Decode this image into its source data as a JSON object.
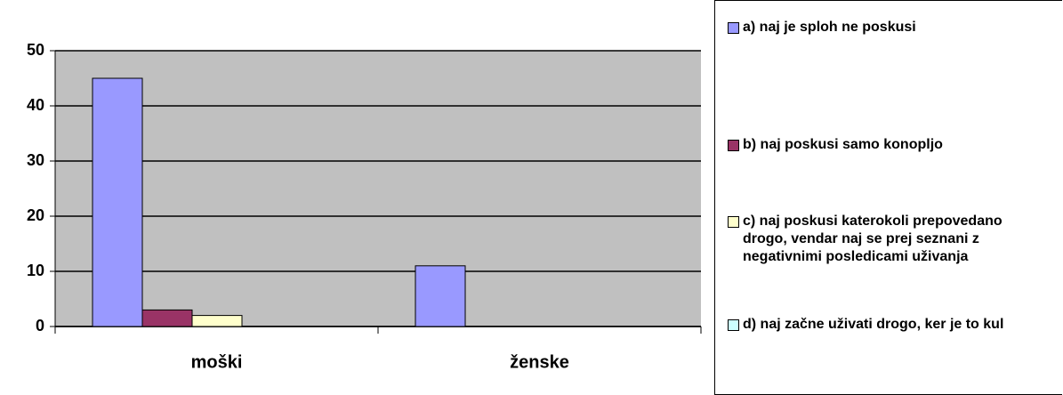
{
  "chart_data": {
    "type": "bar",
    "categories": [
      "moški",
      "ženske"
    ],
    "series": [
      {
        "name": "a) naj je sploh ne poskusi",
        "color": "#9999ff",
        "values": [
          45,
          11
        ]
      },
      {
        "name": "b) naj poskusi samo konopljo",
        "color": "#993366",
        "values": [
          3,
          0
        ]
      },
      {
        "name": "c) naj poskusi katerokoli prepovedano drogo, vendar naj se prej seznani z negativnimi posledicami uživanja",
        "color": "#ffffcc",
        "values": [
          2,
          0
        ]
      },
      {
        "name": "d) naj začne uživati drogo, ker je to kul",
        "color": "#ccffff",
        "values": [
          0,
          0
        ]
      }
    ],
    "ylim": [
      0,
      50
    ],
    "yticks": [
      0,
      10,
      20,
      30,
      40,
      50
    ],
    "grid": true,
    "plot_background": "#c0c0c0",
    "legend": "right"
  }
}
